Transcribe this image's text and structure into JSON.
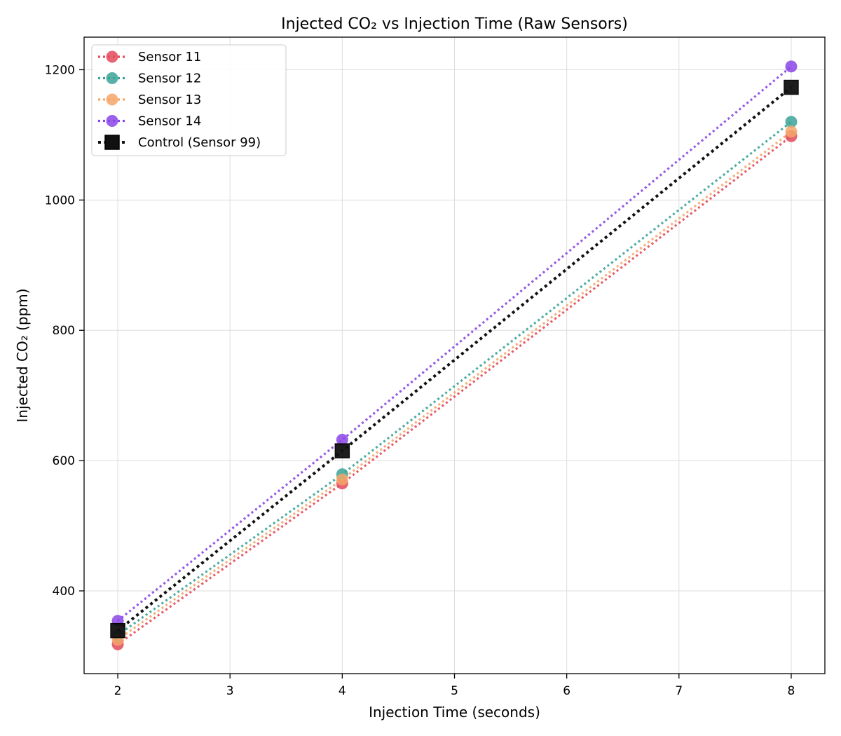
{
  "chart_data": {
    "type": "line",
    "title": "Injected CO₂ vs Injection Time (Raw Sensors)",
    "xlabel": "Injection Time (seconds)",
    "ylabel": "Injected CO₂ (ppm)",
    "xlim": [
      1.7,
      8.3
    ],
    "ylim": [
      273,
      1250
    ],
    "xticks": [
      2,
      3,
      4,
      5,
      6,
      7,
      8
    ],
    "yticks": [
      400,
      600,
      800,
      1000,
      1200
    ],
    "grid": true,
    "legend_position": "top-left",
    "x": [
      2,
      4,
      8
    ],
    "series": [
      {
        "name": "Sensor 11",
        "color": "#e34a5a",
        "marker": "circle",
        "values": [
          318,
          565,
          1098
        ]
      },
      {
        "name": "Sensor 12",
        "color": "#3aa398",
        "marker": "circle",
        "values": [
          332,
          579,
          1120
        ]
      },
      {
        "name": "Sensor 13",
        "color": "#f4a66a",
        "marker": "circle",
        "values": [
          325,
          571,
          1105
        ]
      },
      {
        "name": "Sensor 14",
        "color": "#8a45e6",
        "marker": "circle",
        "values": [
          354,
          632,
          1205
        ]
      },
      {
        "name": "Control (Sensor 99)",
        "color": "#111111",
        "marker": "square",
        "values": [
          339,
          615,
          1173
        ]
      }
    ]
  }
}
